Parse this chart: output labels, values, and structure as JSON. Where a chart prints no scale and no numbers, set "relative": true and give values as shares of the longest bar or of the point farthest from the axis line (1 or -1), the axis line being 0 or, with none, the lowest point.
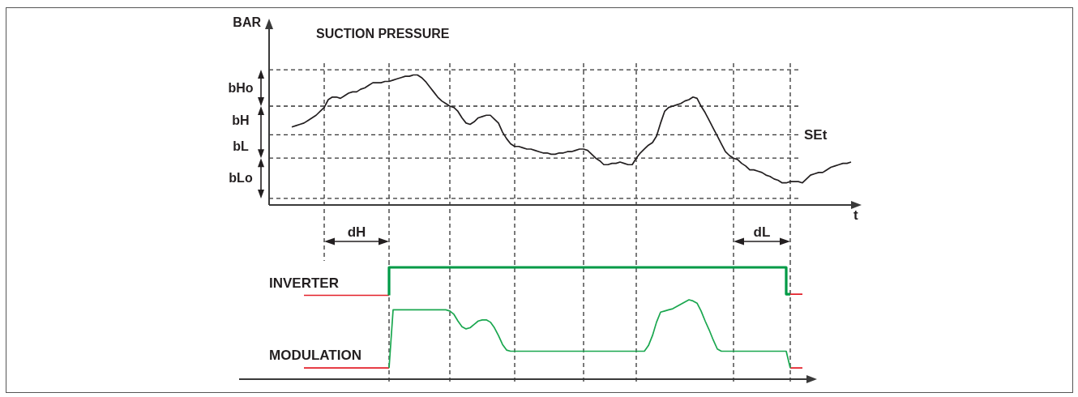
{
  "chart_data": [
    {
      "type": "line",
      "title": "SUCTION PRESSURE",
      "xlabel": "t",
      "ylabel": "BAR",
      "relative": true,
      "categories": [
        null,
        null,
        null,
        null,
        null,
        null,
        null,
        null,
        null,
        null,
        null,
        null,
        null,
        null,
        null,
        null,
        null,
        null,
        null,
        null,
        null,
        null,
        null,
        null,
        null,
        null,
        null,
        null,
        null,
        null,
        null,
        null,
        null,
        null,
        null,
        null,
        null,
        null,
        null,
        null,
        null,
        null,
        null,
        null,
        null,
        null,
        null,
        null,
        null,
        null,
        null,
        null,
        null,
        null,
        null,
        null,
        null,
        null,
        null,
        null,
        null,
        null,
        null,
        null,
        null,
        null,
        null,
        null,
        null,
        null,
        null,
        null,
        null,
        null,
        null,
        null,
        null,
        null,
        null,
        null,
        null,
        null,
        null,
        null,
        null,
        null,
        null,
        null,
        null,
        null,
        null,
        null,
        null,
        null,
        null,
        null,
        null,
        null,
        null,
        null,
        null,
        null,
        null,
        null,
        null,
        null,
        null,
        null,
        null,
        null,
        null,
        null,
        null,
        null,
        null,
        null,
        null,
        null,
        null,
        null,
        null,
        null,
        null,
        null,
        null,
        null,
        null,
        null,
        null,
        null,
        null,
        null,
        null,
        null,
        null,
        null,
        null,
        null,
        null
      ],
      "values": [
        0.6,
        0.61,
        0.62,
        0.63,
        0.65,
        0.67,
        0.69,
        0.72,
        0.75,
        0.81,
        0.83,
        0.83,
        0.82,
        0.84,
        0.86,
        0.87,
        0.87,
        0.89,
        0.9,
        0.92,
        0.94,
        0.94,
        0.94,
        0.95,
        0.95,
        0.96,
        0.97,
        0.98,
        0.99,
        0.99,
        1,
        1,
        0.98,
        0.95,
        0.91,
        0.87,
        0.83,
        0.8,
        0.78,
        0.76,
        0.75,
        0.72,
        0.67,
        0.63,
        0.62,
        0.64,
        0.67,
        0.68,
        0.69,
        0.69,
        0.66,
        0.63,
        0.56,
        0.51,
        0.47,
        0.45,
        0.45,
        0.44,
        0.43,
        0.43,
        0.42,
        0.41,
        0.4,
        0.4,
        0.39,
        0.39,
        0.4,
        0.4,
        0.41,
        0.41,
        0.42,
        0.43,
        0.43,
        0.42,
        0.39,
        0.36,
        0.34,
        0.31,
        0.31,
        0.32,
        0.32,
        0.33,
        0.32,
        0.31,
        0.31,
        0.36,
        0.4,
        0.43,
        0.46,
        0.48,
        0.53,
        0.63,
        0.72,
        0.75,
        0.76,
        0.77,
        0.78,
        0.8,
        0.81,
        0.83,
        0.82,
        0.76,
        0.71,
        0.65,
        0.59,
        0.53,
        0.47,
        0.41,
        0.38,
        0.36,
        0.35,
        0.32,
        0.3,
        0.27,
        0.27,
        0.26,
        0.25,
        0.23,
        0.22,
        0.2,
        0.19,
        0.17,
        0.17,
        0.18,
        0.18,
        0.18,
        0.17,
        0.2,
        0.23,
        0.24,
        0.25,
        0.25,
        0.27,
        0.29,
        0.3,
        0.31,
        0.32,
        0.32,
        0.33
      ],
      "color": "#231f20",
      "ref_lines": [
        {
          "axis": "y",
          "value": 1.04,
          "line_style": "dashed",
          "color": "#333333"
        },
        {
          "axis": "y",
          "value": 0.76,
          "line_style": "dashed",
          "color": "#333333"
        },
        {
          "axis": "y",
          "value": 0.54,
          "label": "SEt",
          "line_style": "dashed",
          "color": "#333333"
        },
        {
          "axis": "y",
          "value": 0.36,
          "line_style": "dashed",
          "color": "#333333"
        },
        {
          "axis": "y",
          "value": 0.05,
          "line_style": "dashed",
          "color": "#333333"
        }
      ],
      "annotations": [
        "bHo",
        "bH",
        "bL",
        "bLo",
        "dH",
        "dL"
      ]
    },
    {
      "type": "line",
      "relative": true,
      "categories": [
        null,
        null,
        null,
        null,
        null,
        null,
        null,
        null,
        null,
        null,
        null,
        null,
        null,
        null,
        null,
        null,
        null,
        null,
        null,
        null,
        null,
        null,
        null,
        null,
        null,
        null,
        null,
        null,
        null,
        null,
        null,
        null,
        null,
        null,
        null,
        null,
        null,
        null,
        null,
        null,
        null,
        null,
        null,
        null,
        null,
        null,
        null,
        null,
        null,
        null,
        null,
        null,
        null,
        null,
        null,
        null,
        null,
        null,
        null,
        null,
        null,
        null,
        null,
        null,
        null,
        null,
        null,
        null,
        null,
        null,
        null,
        null,
        null,
        null,
        null,
        null,
        null,
        null,
        null,
        null,
        null,
        null,
        null,
        null,
        null,
        null,
        null,
        null,
        null,
        null,
        null,
        null,
        null,
        null,
        null,
        null,
        null,
        null,
        null,
        null,
        null,
        null,
        null,
        null,
        null,
        null,
        null,
        null,
        null,
        null,
        null,
        null,
        null,
        null,
        null,
        null,
        null,
        null,
        null,
        null,
        null,
        null,
        null,
        null,
        null,
        null,
        null,
        null
      ],
      "series": [
        {
          "name": "INVERTER",
          "color": "#e3202a",
          "values": [
            null,
            null,
            null,
            0.75,
            0.75,
            0.75,
            0.75,
            0.75,
            0.75,
            0.75,
            0.75,
            0.75,
            0.75,
            0.75,
            0.75,
            0.75,
            0.75,
            0.75,
            0.75,
            0.75,
            0.75,
            0.75,
            0.75,
            0.75,
            0.75,
            null,
            null,
            null,
            null,
            null,
            null,
            null,
            null,
            null,
            null,
            null,
            null,
            null,
            null,
            null,
            null,
            null,
            null,
            null,
            null,
            null,
            null,
            null,
            null,
            null,
            null,
            null,
            null,
            null,
            null,
            null,
            null,
            null,
            null,
            null,
            null,
            null,
            null,
            null,
            null,
            null,
            null,
            null,
            null,
            null,
            null,
            null,
            null,
            null,
            null,
            null,
            null,
            null,
            null,
            null,
            null,
            null,
            null,
            null,
            null,
            null,
            null,
            null,
            null,
            null,
            null,
            null,
            null,
            null,
            null,
            null,
            null,
            null,
            null,
            null,
            null,
            null,
            null,
            null,
            null,
            null,
            null,
            null,
            null,
            null,
            null,
            null,
            null,
            null,
            null,
            null,
            null,
            null,
            null,
            null,
            null,
            null,
            null,
            0.76,
            0.76,
            0.76,
            0.76,
            null
          ]
        },
        {
          "type": "step",
          "color": "#009a46",
          "values": [
            null,
            null,
            null,
            null,
            null,
            null,
            null,
            null,
            null,
            null,
            null,
            null,
            null,
            null,
            null,
            null,
            null,
            null,
            null,
            null,
            null,
            null,
            null,
            null,
            0.75,
            1,
            1,
            1,
            1,
            1,
            1,
            1,
            1,
            1,
            1,
            1,
            1,
            1,
            1,
            1,
            1,
            1,
            1,
            1,
            1,
            1,
            1,
            1,
            1,
            1,
            1,
            1,
            1,
            1,
            1,
            1,
            1,
            1,
            1,
            1,
            1,
            1,
            1,
            1,
            1,
            1,
            1,
            1,
            1,
            1,
            1,
            1,
            1,
            1,
            1,
            1,
            1,
            1,
            1,
            1,
            1,
            1,
            1,
            1,
            1,
            1,
            1,
            1,
            1,
            1,
            1,
            1,
            1,
            1,
            1,
            1,
            1,
            1,
            1,
            1,
            1,
            1,
            1,
            1,
            1,
            1,
            1,
            1,
            1,
            1,
            1,
            1,
            1,
            1,
            1,
            1,
            1,
            1,
            1,
            1,
            1,
            1,
            1,
            0.76,
            null,
            null,
            null,
            null
          ]
        },
        {
          "name": "MODULATION",
          "color": "#e3202a",
          "values": [
            null,
            null,
            null,
            0.1,
            0.1,
            0.1,
            0.1,
            0.1,
            0.1,
            0.1,
            0.1,
            0.1,
            0.1,
            0.1,
            0.1,
            0.1,
            0.1,
            0.1,
            0.1,
            0.1,
            0.1,
            0.1,
            0.1,
            0.1,
            0.1,
            null,
            null,
            null,
            null,
            null,
            null,
            null,
            null,
            null,
            null,
            null,
            null,
            null,
            null,
            null,
            null,
            null,
            null,
            null,
            null,
            null,
            null,
            null,
            null,
            null,
            null,
            null,
            null,
            null,
            null,
            null,
            null,
            null,
            null,
            null,
            null,
            null,
            null,
            null,
            null,
            null,
            null,
            null,
            null,
            null,
            null,
            null,
            null,
            null,
            null,
            null,
            null,
            null,
            null,
            null,
            null,
            null,
            null,
            null,
            null,
            null,
            null,
            null,
            null,
            null,
            null,
            null,
            null,
            null,
            null,
            null,
            null,
            null,
            null,
            null,
            null,
            null,
            null,
            null,
            null,
            null,
            null,
            null,
            null,
            null,
            null,
            null,
            null,
            null,
            null,
            null,
            null,
            null,
            null,
            null,
            null,
            null,
            null,
            0.1,
            0.1,
            0.1,
            0.1,
            null
          ]
        },
        {
          "color": "#1aa74f",
          "values": [
            null,
            null,
            null,
            null,
            null,
            null,
            null,
            null,
            null,
            null,
            null,
            null,
            null,
            null,
            null,
            null,
            null,
            null,
            null,
            null,
            null,
            null,
            null,
            null,
            0.1,
            0.62,
            0.62,
            0.62,
            0.62,
            0.62,
            0.62,
            0.62,
            0.62,
            0.62,
            0.62,
            0.62,
            0.62,
            0.62,
            0.62,
            0.61,
            0.58,
            0.52,
            0.47,
            0.45,
            0.46,
            0.49,
            0.52,
            0.53,
            0.53,
            0.51,
            0.46,
            0.39,
            0.31,
            0.26,
            0.25,
            0.25,
            0.25,
            0.25,
            0.25,
            0.25,
            0.25,
            0.25,
            0.25,
            0.25,
            0.25,
            0.25,
            0.25,
            0.25,
            0.25,
            0.25,
            0.25,
            0.25,
            0.25,
            0.25,
            0.25,
            0.25,
            0.25,
            0.25,
            0.25,
            0.25,
            0.25,
            0.25,
            0.25,
            0.25,
            0.25,
            0.25,
            0.25,
            0.25,
            0.3,
            0.39,
            0.51,
            0.6,
            0.61,
            0.62,
            0.63,
            0.65,
            0.67,
            0.69,
            0.71,
            0.7,
            0.68,
            0.61,
            0.52,
            0.44,
            0.35,
            0.27,
            0.25,
            0.25,
            0.25,
            0.25,
            0.25,
            0.25,
            0.25,
            0.25,
            0.25,
            0.25,
            0.25,
            0.25,
            0.25,
            0.25,
            0.25,
            0.25,
            0.25,
            0.1,
            null,
            null,
            null,
            null
          ]
        }
      ]
    }
  ]
}
